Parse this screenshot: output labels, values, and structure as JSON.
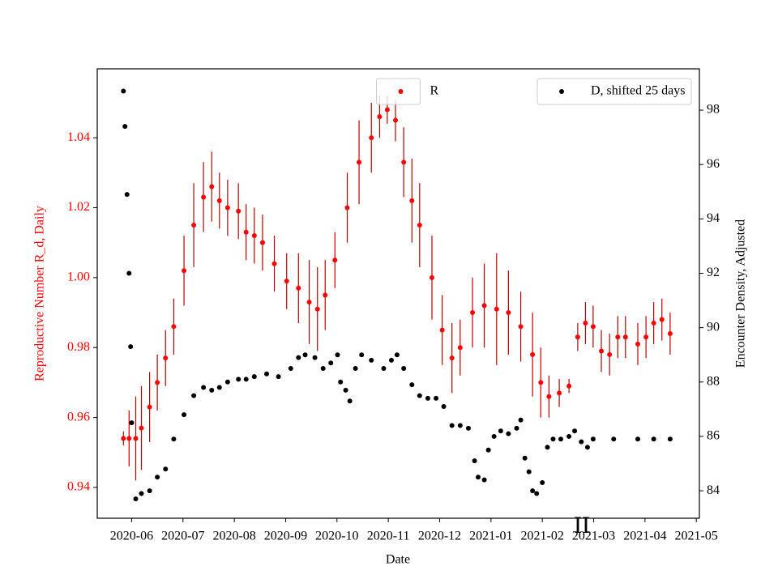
{
  "chart_data": {
    "type": "scatter",
    "xlabel": "Date",
    "ylabel": "Reproductive Number R_d, Daily",
    "y2label": "Encounter Density, Adjusted",
    "annotation": "II",
    "xlim": [
      5.33,
      17.06
    ],
    "xticks": [
      {
        "value": 6,
        "label": "2020-06"
      },
      {
        "value": 7,
        "label": "2020-07"
      },
      {
        "value": 8,
        "label": "2020-08"
      },
      {
        "value": 9,
        "label": "2020-09"
      },
      {
        "value": 10,
        "label": "2020-10"
      },
      {
        "value": 11,
        "label": "2020-11"
      },
      {
        "value": 12,
        "label": "2020-12"
      },
      {
        "value": 13,
        "label": "2021-01"
      },
      {
        "value": 14,
        "label": "2021-02"
      },
      {
        "value": 15,
        "label": "2021-03"
      },
      {
        "value": 16,
        "label": "2021-04"
      },
      {
        "value": 17,
        "label": "2021-05"
      }
    ],
    "ylim": [
      0.9312,
      1.0597
    ],
    "yticks": [
      0.94,
      0.96,
      0.98,
      {
        "value": 1,
        "label": "1.00"
      },
      1.02,
      1.04
    ],
    "y2lim": [
      82.99,
      99.52
    ],
    "y2ticks": [
      84,
      86,
      88,
      90,
      92,
      94,
      96,
      98
    ],
    "ylabel_color": "#ff0000",
    "series": [
      {
        "name": "R",
        "color": "#ff0000",
        "error_color": "#bb0000",
        "axis": "y",
        "legend": "upper center",
        "x": [
          5.84,
          5.95,
          6.08,
          6.19,
          6.35,
          6.5,
          6.66,
          6.82,
          7.02,
          7.21,
          7.4,
          7.56,
          7.71,
          7.87,
          8.08,
          8.23,
          8.39,
          8.55,
          8.78,
          9.02,
          9.25,
          9.46,
          9.62,
          9.77,
          9.96,
          10.2,
          10.43,
          10.67,
          10.83,
          10.98,
          11.14,
          11.3,
          11.46,
          11.61,
          11.85,
          12.05,
          12.24,
          12.4,
          12.64,
          12.87,
          13.11,
          13.34,
          13.58,
          13.81,
          13.97,
          14.13,
          14.33,
          14.52,
          14.69,
          14.84,
          14.99,
          15.15,
          15.31,
          15.47,
          15.62,
          15.86,
          16.02,
          16.17,
          16.33,
          16.49
        ],
        "values": [
          0.954,
          0.954,
          0.954,
          0.957,
          0.963,
          0.97,
          0.977,
          0.986,
          1.002,
          1.015,
          1.023,
          1.026,
          1.022,
          1.02,
          1.019,
          1.013,
          1.012,
          1.01,
          1.004,
          0.999,
          0.997,
          0.993,
          0.991,
          0.995,
          1.005,
          1.02,
          1.033,
          1.04,
          1.046,
          1.048,
          1.045,
          1.033,
          1.022,
          1.015,
          1.0,
          0.985,
          0.977,
          0.98,
          0.99,
          0.992,
          0.991,
          0.99,
          0.986,
          0.978,
          0.97,
          0.966,
          0.967,
          0.969,
          0.983,
          0.987,
          0.986,
          0.979,
          0.978,
          0.983,
          0.983,
          0.981,
          0.983,
          0.987,
          0.988,
          0.984
        ],
        "errors": [
          0.002,
          0.008,
          0.012,
          0.012,
          0.01,
          0.008,
          0.008,
          0.008,
          0.01,
          0.012,
          0.01,
          0.01,
          0.008,
          0.008,
          0.008,
          0.008,
          0.008,
          0.008,
          0.008,
          0.008,
          0.01,
          0.012,
          0.012,
          0.01,
          0.008,
          0.01,
          0.012,
          0.01,
          0.006,
          0.004,
          0.006,
          0.01,
          0.012,
          0.012,
          0.012,
          0.01,
          0.01,
          0.008,
          0.01,
          0.012,
          0.016,
          0.012,
          0.01,
          0.012,
          0.01,
          0.006,
          0.004,
          0.002,
          0.004,
          0.006,
          0.006,
          0.006,
          0.006,
          0.006,
          0.006,
          0.006,
          0.006,
          0.006,
          0.006,
          0.006
        ]
      },
      {
        "name": "D, shifted 25 days",
        "color": "#000000",
        "axis": "y2",
        "legend": "upper right",
        "x": [
          5.84,
          5.87,
          5.91,
          5.95,
          5.98,
          6.0,
          6.08,
          6.19,
          6.35,
          6.5,
          6.66,
          6.82,
          7.02,
          7.21,
          7.4,
          7.56,
          7.71,
          7.87,
          8.08,
          8.23,
          8.39,
          8.63,
          8.86,
          9.1,
          9.25,
          9.38,
          9.57,
          9.73,
          9.88,
          10.01,
          10.07,
          10.17,
          10.25,
          10.36,
          10.48,
          10.67,
          10.91,
          11.06,
          11.17,
          11.3,
          11.46,
          11.61,
          11.77,
          11.93,
          12.08,
          12.24,
          12.4,
          12.56,
          12.68,
          12.75,
          12.87,
          12.95,
          13.06,
          13.19,
          13.34,
          13.5,
          13.58,
          13.66,
          13.74,
          13.81,
          13.89,
          14.0,
          14.1,
          14.21,
          14.36,
          14.52,
          14.63,
          14.76,
          14.88,
          14.99,
          15.39,
          15.86,
          16.17,
          16.49
        ],
        "values": [
          98.7,
          97.4,
          94.9,
          92.0,
          89.3,
          86.5,
          83.7,
          83.9,
          84.0,
          84.5,
          84.8,
          85.9,
          86.8,
          87.5,
          87.8,
          87.7,
          87.8,
          88.0,
          88.1,
          88.1,
          88.2,
          88.3,
          88.2,
          88.5,
          88.9,
          89.0,
          88.9,
          88.5,
          88.7,
          89.0,
          88.0,
          87.7,
          87.3,
          88.5,
          89.0,
          88.8,
          88.5,
          88.8,
          89.0,
          88.5,
          87.9,
          87.5,
          87.4,
          87.4,
          87.1,
          86.4,
          86.4,
          86.3,
          85.1,
          84.5,
          84.4,
          85.5,
          86.0,
          86.2,
          86.1,
          86.3,
          86.6,
          85.2,
          84.7,
          84.0,
          83.9,
          84.3,
          85.6,
          85.9,
          85.9,
          86.0,
          86.2,
          85.8,
          85.6,
          85.9,
          85.9,
          85.9,
          85.9,
          85.9
        ]
      }
    ]
  }
}
